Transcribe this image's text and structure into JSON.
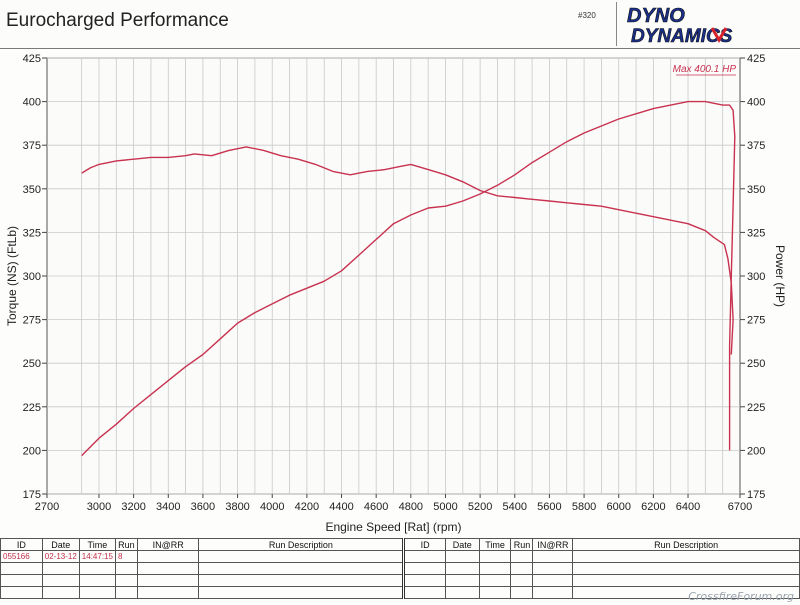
{
  "header": {
    "title": "Eurocharged Performance",
    "sheet_number": "#320",
    "logo_top": "DYNO",
    "logo_bottom": "DYNAMICS",
    "logo_colors": {
      "text": "#1a2f8a",
      "accent": "#d8202a",
      "outline": "#111111"
    }
  },
  "chart_data": {
    "type": "line",
    "xlabel": "Engine Speed [Rat] (rpm)",
    "ylabel_left": "Torque (NS) (FtLb)",
    "ylabel_right": "Power (HP)",
    "xlim": [
      2700,
      6700
    ],
    "ylim": [
      175,
      425
    ],
    "x_ticks": [
      "2700",
      "3000",
      "3200",
      "3400",
      "3600",
      "3800",
      "4000",
      "4200",
      "4400",
      "4600",
      "4800",
      "5000",
      "5200",
      "5400",
      "5600",
      "5800",
      "6000",
      "6200",
      "6400",
      "6700"
    ],
    "x_tick_values": [
      2700,
      3000,
      3200,
      3400,
      3600,
      3800,
      4000,
      4200,
      4400,
      4600,
      4800,
      5000,
      5200,
      5400,
      5600,
      5800,
      6000,
      6200,
      6400,
      6700
    ],
    "x_grid_values": [
      2900,
      3000,
      3100,
      3200,
      3300,
      3400,
      3500,
      3600,
      3700,
      3800,
      3900,
      4000,
      4100,
      4200,
      4300,
      4400,
      4500,
      4600,
      4700,
      4800,
      4900,
      5000,
      5100,
      5200,
      5300,
      5400,
      5500,
      5600,
      5700,
      5800,
      5900,
      6000,
      6100,
      6200,
      6300,
      6400,
      6500,
      6600
    ],
    "y_ticks": [
      "175",
      "200",
      "225",
      "250",
      "275",
      "300",
      "325",
      "350",
      "375",
      "400",
      "425"
    ],
    "y_tick_values": [
      175,
      200,
      225,
      250,
      275,
      300,
      325,
      350,
      375,
      400,
      425
    ],
    "grid": true,
    "annotation": "Max 400.1 HP",
    "line_color": "#c8324f",
    "series": [
      {
        "points": [
          [
            2900,
            359
          ],
          [
            2950,
            362
          ],
          [
            3000,
            364
          ],
          [
            3100,
            366
          ],
          [
            3200,
            367
          ],
          [
            3300,
            368
          ],
          [
            3400,
            368
          ],
          [
            3500,
            369
          ],
          [
            3550,
            370
          ],
          [
            3650,
            369
          ],
          [
            3750,
            372
          ],
          [
            3850,
            374
          ],
          [
            3950,
            372
          ],
          [
            4050,
            369
          ],
          [
            4150,
            367
          ],
          [
            4250,
            364
          ],
          [
            4350,
            360
          ],
          [
            4450,
            358
          ],
          [
            4550,
            360
          ],
          [
            4650,
            361
          ],
          [
            4750,
            363
          ],
          [
            4800,
            364
          ],
          [
            4900,
            361
          ],
          [
            5000,
            358
          ],
          [
            5100,
            354
          ],
          [
            5200,
            349
          ],
          [
            5300,
            346
          ],
          [
            5400,
            345
          ],
          [
            5500,
            344
          ],
          [
            5600,
            343
          ],
          [
            5700,
            342
          ],
          [
            5800,
            341
          ],
          [
            5900,
            340
          ],
          [
            6000,
            338
          ],
          [
            6100,
            336
          ],
          [
            6200,
            334
          ],
          [
            6300,
            332
          ],
          [
            6400,
            330
          ],
          [
            6500,
            326
          ],
          [
            6550,
            322
          ],
          [
            6580,
            320
          ],
          [
            6610,
            318
          ],
          [
            6630,
            310
          ],
          [
            6640,
            303
          ],
          [
            6650,
            296
          ],
          [
            6660,
            275
          ],
          [
            6650,
            255
          ]
        ]
      },
      {
        "points": [
          [
            2900,
            197
          ],
          [
            3000,
            207
          ],
          [
            3100,
            215
          ],
          [
            3200,
            224
          ],
          [
            3300,
            232
          ],
          [
            3400,
            240
          ],
          [
            3500,
            248
          ],
          [
            3600,
            255
          ],
          [
            3700,
            264
          ],
          [
            3800,
            273
          ],
          [
            3900,
            279
          ],
          [
            4000,
            284
          ],
          [
            4100,
            289
          ],
          [
            4200,
            293
          ],
          [
            4300,
            297
          ],
          [
            4400,
            303
          ],
          [
            4500,
            312
          ],
          [
            4600,
            321
          ],
          [
            4700,
            330
          ],
          [
            4800,
            335
          ],
          [
            4900,
            339
          ],
          [
            5000,
            340
          ],
          [
            5100,
            343
          ],
          [
            5200,
            347
          ],
          [
            5300,
            352
          ],
          [
            5400,
            358
          ],
          [
            5500,
            365
          ],
          [
            5600,
            371
          ],
          [
            5700,
            377
          ],
          [
            5800,
            382
          ],
          [
            5900,
            386
          ],
          [
            6000,
            390
          ],
          [
            6100,
            393
          ],
          [
            6200,
            396
          ],
          [
            6300,
            398
          ],
          [
            6400,
            400
          ],
          [
            6500,
            400
          ],
          [
            6550,
            399
          ],
          [
            6600,
            398
          ],
          [
            6640,
            398
          ],
          [
            6660,
            395
          ],
          [
            6670,
            380
          ],
          [
            6660,
            340
          ],
          [
            6650,
            300
          ],
          [
            6640,
            260
          ],
          [
            6640,
            230
          ],
          [
            6640,
            200
          ]
        ]
      }
    ]
  },
  "runs_table": {
    "headers": [
      "ID",
      "Date",
      "Time",
      "Run",
      "IN@RR",
      "Run Description",
      "ID",
      "Date",
      "Time",
      "Run",
      "IN@RR",
      "Run Description"
    ],
    "rows": [
      [
        "055166",
        "02-13-12",
        "14:47:15",
        "8",
        "",
        "",
        "",
        "",
        "",
        "",
        "",
        ""
      ],
      [
        "",
        "",
        "",
        "",
        "",
        "",
        "",
        "",
        "",
        "",
        "",
        ""
      ],
      [
        "",
        "",
        "",
        "",
        "",
        "",
        "",
        "",
        "",
        "",
        "",
        ""
      ],
      [
        "",
        "",
        "",
        "",
        "",
        "",
        "",
        "",
        "",
        "",
        "",
        ""
      ]
    ]
  },
  "watermark": "CrossfireForum.org"
}
